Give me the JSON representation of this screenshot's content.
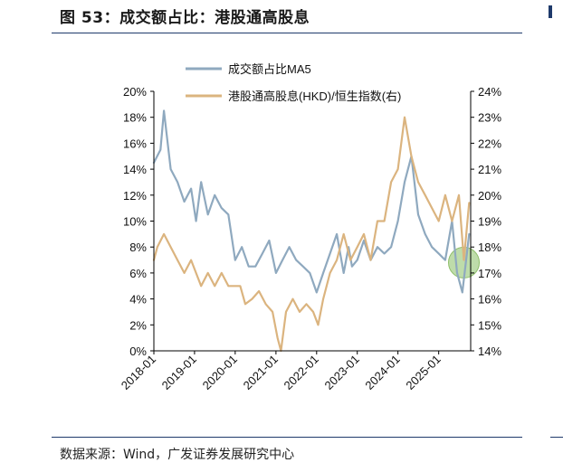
{
  "header": {
    "title": "图 53：成交额占比：港股通高股息"
  },
  "footer": {
    "source": "数据来源：Wind，广发证券发展研究中心"
  },
  "chart_data": {
    "type": "line",
    "title": "成交额占比：港股通高股息",
    "x_tick_labels": [
      "2018-01",
      "2019-01",
      "2020-01",
      "2021-01",
      "2022-01",
      "2023-01",
      "2024-01",
      "2025-01"
    ],
    "xlim": [
      "2018-01-01",
      "2025-10-15"
    ],
    "left_axis": {
      "ylim": [
        0,
        20
      ],
      "ticks": [
        0,
        2,
        4,
        6,
        8,
        10,
        12,
        14,
        16,
        18,
        20
      ],
      "tick_labels": [
        "0%",
        "2%",
        "4%",
        "6%",
        "8%",
        "10%",
        "12%",
        "14%",
        "16%",
        "18%",
        "20%"
      ]
    },
    "right_axis": {
      "ylim": [
        14,
        24
      ],
      "ticks": [
        14,
        15,
        16,
        17,
        18,
        19,
        20,
        21,
        22,
        23,
        24
      ],
      "tick_labels": [
        "14%",
        "15%",
        "16%",
        "17%",
        "18%",
        "19%",
        "20%",
        "21%",
        "22%",
        "23%",
        "24%"
      ]
    },
    "legend_position": "top",
    "highlight": {
      "x": "2025-08-15",
      "y_right": 17.4,
      "color": "#a8d08d"
    },
    "series": [
      {
        "name": "成交额占比MA5",
        "axis": "left",
        "color": "#8fa9bf",
        "x": [
          "2018-01-01",
          "2018-03-01",
          "2018-04-01",
          "2018-06-01",
          "2018-08-01",
          "2018-10-01",
          "2018-12-01",
          "2019-01-15",
          "2019-03-01",
          "2019-05-01",
          "2019-07-01",
          "2019-09-01",
          "2019-11-01",
          "2020-01-01",
          "2020-03-01",
          "2020-05-01",
          "2020-07-01",
          "2020-09-01",
          "2020-11-01",
          "2021-01-01",
          "2021-03-01",
          "2021-05-01",
          "2021-07-01",
          "2021-09-01",
          "2021-11-01",
          "2022-01-01",
          "2022-03-01",
          "2022-05-01",
          "2022-07-01",
          "2022-09-01",
          "2022-10-15",
          "2022-11-15",
          "2023-01-01",
          "2023-03-01",
          "2023-05-01",
          "2023-07-01",
          "2023-09-01",
          "2023-11-01",
          "2024-01-01",
          "2024-03-01",
          "2024-05-01",
          "2024-07-01",
          "2024-09-01",
          "2024-11-01",
          "2025-01-01",
          "2025-03-01",
          "2025-05-01",
          "2025-06-15",
          "2025-08-01",
          "2025-10-01"
        ],
        "values": [
          14.5,
          15.5,
          18.5,
          14,
          13,
          11.5,
          12.5,
          10,
          13,
          10.5,
          12,
          11,
          10.5,
          7,
          8,
          6.5,
          6.5,
          7.5,
          8.5,
          6,
          7,
          8,
          7,
          6.5,
          6,
          4.5,
          6,
          7.5,
          9,
          6,
          8,
          6.5,
          7,
          8.5,
          7,
          8,
          7.5,
          8,
          10,
          13,
          15,
          10.5,
          9,
          8,
          7.5,
          7,
          10,
          6,
          4.5,
          9
        ]
      },
      {
        "name": "港股通高股息(HKD)/恒生指数(右)",
        "axis": "right",
        "color": "#dbb47f",
        "x": [
          "2018-01-01",
          "2018-02-01",
          "2018-04-01",
          "2018-06-01",
          "2018-08-01",
          "2018-10-01",
          "2018-12-01",
          "2019-01-15",
          "2019-03-01",
          "2019-05-01",
          "2019-07-01",
          "2019-09-01",
          "2019-11-01",
          "2020-01-01",
          "2020-02-15",
          "2020-04-01",
          "2020-06-01",
          "2020-08-01",
          "2020-10-01",
          "2020-12-01",
          "2021-01-15",
          "2021-02-15",
          "2021-04-01",
          "2021-06-01",
          "2021-08-01",
          "2021-10-01",
          "2021-12-01",
          "2022-01-15",
          "2022-03-01",
          "2022-05-01",
          "2022-07-01",
          "2022-09-01",
          "2022-11-01",
          "2023-01-01",
          "2023-03-01",
          "2023-05-01",
          "2023-07-01",
          "2023-09-01",
          "2023-11-01",
          "2024-01-01",
          "2024-03-01",
          "2024-05-01",
          "2024-07-01",
          "2024-09-01",
          "2024-11-01",
          "2025-01-01",
          "2025-03-01",
          "2025-05-01",
          "2025-07-01",
          "2025-08-15",
          "2025-10-01"
        ],
        "values": [
          17.5,
          18,
          18.5,
          18,
          17.5,
          17,
          17.5,
          17,
          16.5,
          17,
          16.5,
          17,
          16.5,
          16.5,
          16.5,
          15.8,
          16,
          16.3,
          15.8,
          15.5,
          14.5,
          14,
          15.5,
          16,
          15.5,
          15.8,
          15.5,
          15,
          16,
          17,
          17.5,
          18.5,
          17.5,
          18,
          18.5,
          17.5,
          19,
          19,
          20.5,
          21,
          23,
          21.5,
          20.5,
          20,
          19.5,
          19,
          20,
          19,
          20,
          17.5,
          19.7
        ]
      }
    ]
  }
}
